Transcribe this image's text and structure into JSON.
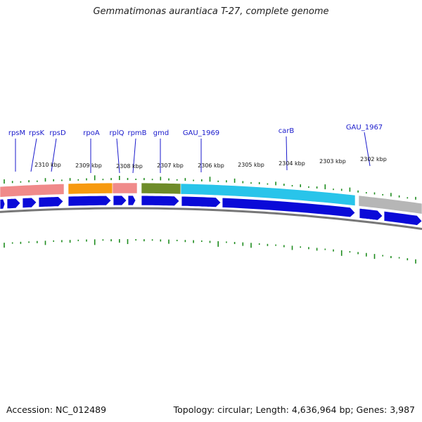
{
  "title": "Gemmatimonas aurantiaca T-27, complete genome",
  "footer": {
    "accession": "Accession: NC_012489",
    "summary": "Topology: circular; Length: 4,636,964 bp; Genes: 3,987"
  },
  "gene_labels": [
    "rpsM",
    "rpsK",
    "rpsD",
    "rpoA",
    "rplQ",
    "rpmB",
    "gmd",
    "GAU_1969",
    "carB",
    "GAU_1967"
  ],
  "scale_labels": [
    "2310 kbp",
    "2309 kbp",
    "2308 kbp",
    "2307 kbp",
    "2306 kbp",
    "2305 kbp",
    "2304 kbp",
    "2303 kbp",
    "2302 kbp"
  ],
  "colors": {
    "cds": "#0a0ad8",
    "pink": "#f08a8a",
    "orange": "#f79a10",
    "olive": "#6e8c2a",
    "cyan": "#29c4ea",
    "grey": "#b6b6b6",
    "tick": "#1e8c1e",
    "label": "#1a1acc"
  }
}
